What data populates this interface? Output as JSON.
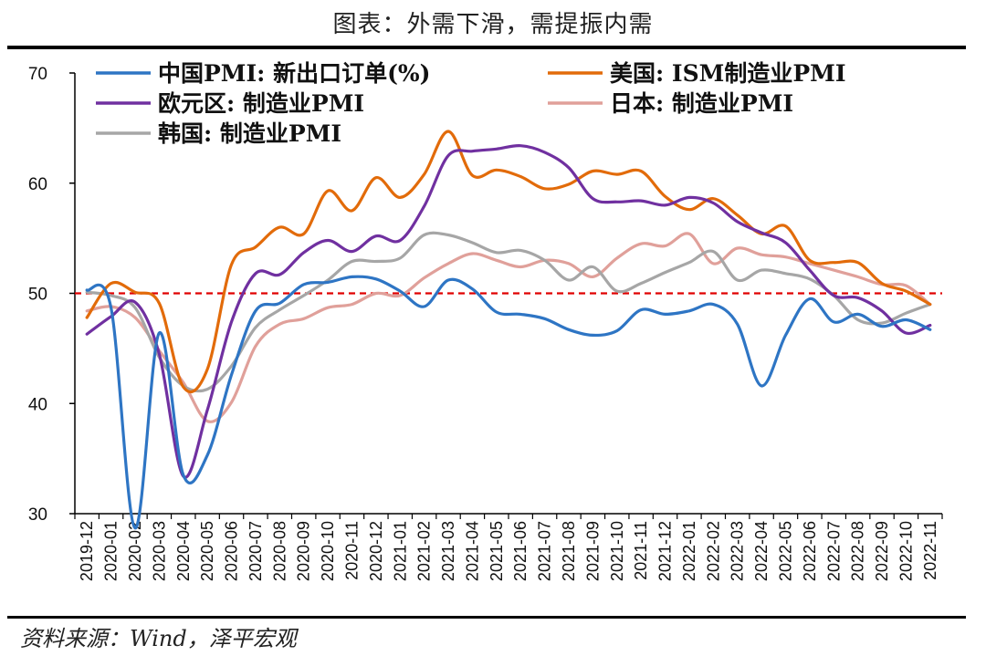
{
  "title": "图表：外需下滑，需提振内需",
  "source": "资料来源：Wind，泽平宏观",
  "chart_data": {
    "type": "line",
    "title": "图表：外需下滑，需提振内需",
    "xlabel": "",
    "ylabel": "",
    "ylim": [
      30,
      70
    ],
    "yticks": [
      30,
      40,
      50,
      60,
      70
    ],
    "reference_line": {
      "value": 50,
      "color": "#e00000",
      "style": "dashed"
    },
    "categories": [
      "2019-12",
      "2020-01",
      "2020-02",
      "2020-03",
      "2020-04",
      "2020-05",
      "2020-06",
      "2020-07",
      "2020-08",
      "2020-09",
      "2020-10",
      "2020-11",
      "2020-12",
      "2021-01",
      "2021-02",
      "2021-03",
      "2021-04",
      "2021-05",
      "2021-06",
      "2021-07",
      "2021-08",
      "2021-09",
      "2021-10",
      "2021-11",
      "2021-12",
      "2022-01",
      "2022-02",
      "2022-03",
      "2022-04",
      "2022-05",
      "2022-06",
      "2022-07",
      "2022-08",
      "2022-09",
      "2022-10",
      "2022-11"
    ],
    "series": [
      {
        "name": "中国PMI: 新出口订单(%)",
        "color": "#2e75c4",
        "values": [
          50.3,
          48.7,
          28.7,
          46.4,
          33.5,
          35.3,
          42.6,
          48.4,
          49.1,
          50.8,
          51.0,
          51.5,
          51.3,
          50.2,
          48.8,
          51.2,
          50.4,
          48.3,
          48.1,
          47.7,
          46.7,
          46.2,
          46.6,
          48.5,
          48.1,
          48.4,
          49.0,
          47.2,
          41.6,
          46.2,
          49.5,
          47.4,
          48.1,
          47.0,
          47.6,
          46.7
        ]
      },
      {
        "name": "美国: ISM制造业PMI",
        "color": "#e26b0a",
        "values": [
          47.8,
          50.9,
          50.1,
          49.1,
          41.5,
          43.1,
          52.6,
          54.2,
          56.0,
          55.4,
          59.3,
          57.5,
          60.5,
          58.7,
          60.8,
          64.7,
          60.7,
          61.2,
          60.6,
          59.5,
          59.9,
          61.1,
          60.8,
          61.1,
          58.8,
          57.6,
          58.6,
          57.1,
          55.4,
          56.1,
          53.0,
          52.8,
          52.8,
          50.9,
          50.2,
          49.0
        ]
      },
      {
        "name": "欧元区: 制造业PMI",
        "color": "#7030a0",
        "values": [
          46.3,
          47.9,
          49.2,
          44.5,
          33.4,
          39.4,
          47.4,
          51.8,
          51.7,
          53.7,
          54.8,
          53.8,
          55.2,
          54.8,
          57.9,
          62.5,
          62.9,
          63.1,
          63.4,
          62.8,
          61.4,
          58.6,
          58.3,
          58.4,
          58.0,
          58.7,
          58.2,
          56.5,
          55.5,
          54.6,
          52.1,
          49.8,
          49.6,
          48.4,
          46.4,
          47.1
        ]
      },
      {
        "name": "日本: 制造业PMI",
        "color": "#e0a09a",
        "values": [
          48.4,
          48.8,
          47.8,
          44.8,
          41.9,
          38.4,
          40.1,
          45.2,
          47.2,
          47.7,
          48.7,
          49.0,
          50.0,
          49.8,
          51.4,
          52.7,
          53.6,
          53.0,
          52.4,
          53.0,
          52.7,
          51.5,
          53.2,
          54.5,
          54.3,
          55.4,
          52.7,
          54.1,
          53.5,
          53.3,
          52.7,
          52.1,
          51.5,
          50.8,
          50.7,
          49.0
        ]
      },
      {
        "name": "韩国: 制造业PMI",
        "color": "#a6a6a6",
        "values": [
          50.1,
          49.8,
          48.7,
          44.2,
          41.6,
          41.3,
          43.4,
          46.9,
          48.5,
          49.8,
          51.2,
          52.9,
          52.9,
          53.2,
          55.3,
          55.3,
          54.6,
          53.7,
          53.9,
          53.0,
          51.2,
          52.4,
          50.2,
          50.9,
          51.9,
          52.8,
          53.8,
          51.2,
          52.1,
          51.8,
          51.3,
          49.8,
          47.6,
          47.3,
          48.2,
          49.0
        ]
      }
    ]
  }
}
